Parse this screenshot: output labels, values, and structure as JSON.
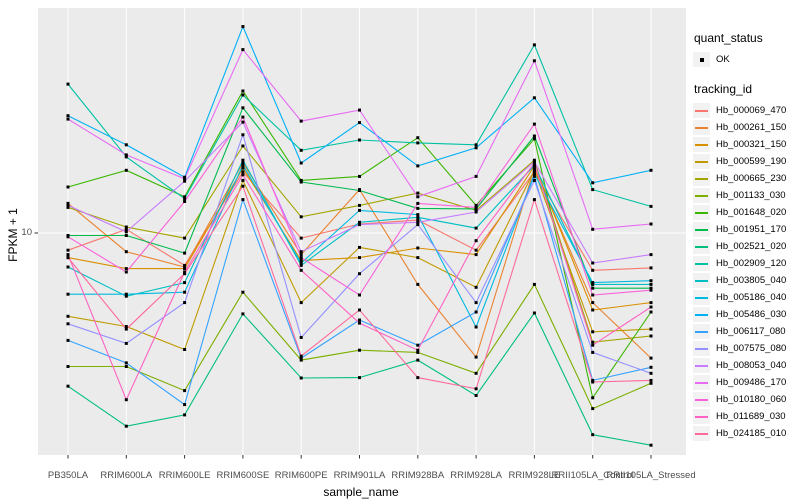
{
  "chart_data": {
    "type": "line",
    "title": "",
    "xlabel": "sample_name",
    "ylabel": "FPKM + 1",
    "y_scale": "log10",
    "y_axis_ticks": [
      "10"
    ],
    "x_categories": [
      "PB350LA",
      "RRIM600LA",
      "RRIM600LE",
      "RRIM600SE",
      "RRIM600PE",
      "RRIM901LA",
      "RRIM928BA",
      "RRIM928LA",
      "RRIM928LE",
      "RRII105LA_Control",
      "RRII105LA_Stressed"
    ],
    "legend": {
      "quant_status": {
        "title": "quant_status",
        "items": [
          {
            "label": "OK",
            "marker": "black-point",
            "color": "#000000"
          }
        ]
      },
      "tracking_id": {
        "title": "tracking_id"
      }
    },
    "style": {
      "panel_bg": "#EBEBEB",
      "grid_color": "#FFFFFF",
      "point_color": "#000000",
      "tick_text_color": "#4D4D4D",
      "tick_mark_color": "#333333",
      "legend_key_bg": "#F2F2F2"
    },
    "series": [
      {
        "tracking_id": "Hb_000069_470",
        "color": "#F8766D",
        "values": [
          8.7,
          10.3,
          7.7,
          16.4,
          9.6,
          10.75,
          11.1,
          8.7,
          16.4,
          7.4,
          7.54
        ]
      },
      {
        "tracking_id": "Hb_000261_150",
        "color": "#EA8331",
        "values": [
          12.7,
          8.6,
          7.6,
          17.6,
          8.4,
          14.2,
          6.6,
          3.67,
          16.9,
          5.7,
          3.64
        ]
      },
      {
        "tracking_id": "Hb_000321_150",
        "color": "#D89000",
        "values": [
          8.2,
          7.5,
          7.5,
          16.9,
          8.0,
          8.2,
          8.86,
          8.4,
          17.2,
          5.37,
          5.7
        ]
      },
      {
        "tracking_id": "Hb_000599_190",
        "color": "#C09B00",
        "values": [
          5.1,
          4.7,
          3.9,
          15.3,
          5.7,
          8.9,
          8.2,
          6.45,
          16.6,
          4.5,
          4.6
        ]
      },
      {
        "tracking_id": "Hb_000665_230",
        "color": "#A3A500",
        "values": [
          12.3,
          10.5,
          9.6,
          20.2,
          11.4,
          12.5,
          13.8,
          12.0,
          18.0,
          4.14,
          4.35
        ]
      },
      {
        "tracking_id": "Hb_001133_030",
        "color": "#7CAE00",
        "values": [
          3.4,
          3.4,
          2.8,
          6.2,
          3.58,
          3.88,
          3.81,
          3.22,
          6.6,
          2.42,
          2.97
        ]
      },
      {
        "tracking_id": "Hb_001648_020",
        "color": "#39B600",
        "values": [
          14.5,
          16.6,
          13.4,
          31.5,
          15.3,
          15.8,
          21.6,
          12.5,
          21.4,
          2.64,
          5.28
        ]
      },
      {
        "tracking_id": "Hb_001951_170",
        "color": "#00BB4E",
        "values": [
          9.8,
          9.8,
          8.5,
          27.5,
          15.1,
          14.1,
          12.2,
          12.15,
          21.9,
          6.4,
          6.4
        ]
      },
      {
        "tracking_id": "Hb_002521_020",
        "color": "#00BF7D",
        "values": [
          2.9,
          2.1,
          2.3,
          5.2,
          3.1,
          3.11,
          3.58,
          2.69,
          5.24,
          1.96,
          1.8
        ]
      },
      {
        "tracking_id": "Hb_002909_120",
        "color": "#00C1A3",
        "values": [
          33.3,
          18.5,
          13.2,
          30.5,
          19.5,
          21.2,
          20.7,
          20.4,
          45.7,
          14.2,
          12.4
        ]
      },
      {
        "tracking_id": "Hb_003805_040",
        "color": "#00BFC4",
        "values": [
          7.6,
          6.0,
          6.7,
          18.0,
          7.7,
          10.9,
          11.35,
          10.4,
          17.3,
          6.6,
          6.6
        ]
      },
      {
        "tracking_id": "Hb_005186_040",
        "color": "#00BAE0",
        "values": [
          6.1,
          6.1,
          6.2,
          17.3,
          7.85,
          12.0,
          11.6,
          4.68,
          16.1,
          6.7,
          6.8
        ]
      },
      {
        "tracking_id": "Hb_005486_030",
        "color": "#00B0F6",
        "values": [
          25.8,
          20.4,
          15.7,
          53.0,
          17.6,
          24.4,
          17.2,
          19.9,
          29.8,
          15.0,
          16.6
        ]
      },
      {
        "tracking_id": "Hb_006117_080",
        "color": "#35A2FF",
        "values": [
          4.2,
          3.5,
          2.5,
          13.1,
          3.64,
          4.95,
          4.04,
          5.28,
          15.8,
          3.04,
          3.38
        ]
      },
      {
        "tracking_id": "Hb_007575_080",
        "color": "#9590FF",
        "values": [
          4.8,
          4.1,
          5.7,
          22.1,
          4.3,
          7.2,
          10.7,
          5.7,
          15.3,
          3.81,
          3.22
        ]
      },
      {
        "tracking_id": "Hb_008053_040",
        "color": "#C77CFF",
        "values": [
          12.5,
          10.1,
          15.2,
          24.5,
          8.6,
          10.7,
          10.9,
          11.85,
          17.8,
          7.85,
          8.4
        ]
      },
      {
        "tracking_id": "Hb_009486_170",
        "color": "#E76BF3",
        "values": [
          25.1,
          18.8,
          15.5,
          44.0,
          24.7,
          27.0,
          13.4,
          15.8,
          40.2,
          10.3,
          10.75
        ]
      },
      {
        "tracking_id": "Hb_010180_060",
        "color": "#FA62DB",
        "values": [
          9.7,
          7.3,
          12.9,
          25.5,
          8.2,
          6.06,
          12.7,
          12.3,
          24.1,
          6.06,
          6.3
        ]
      },
      {
        "tracking_id": "Hb_011689_030",
        "color": "#FF61C3",
        "values": [
          8.4,
          2.6,
          7.3,
          16.0,
          7.4,
          4.83,
          3.88,
          9.4,
          17.6,
          4.04,
          5.5
        ]
      },
      {
        "tracking_id": "Hb_024185_010",
        "color": "#FF699C",
        "values": [
          8.2,
          4.6,
          7.2,
          14.6,
          3.7,
          5.37,
          3.11,
          2.84,
          13.1,
          3.0,
          3.04
        ]
      }
    ]
  }
}
